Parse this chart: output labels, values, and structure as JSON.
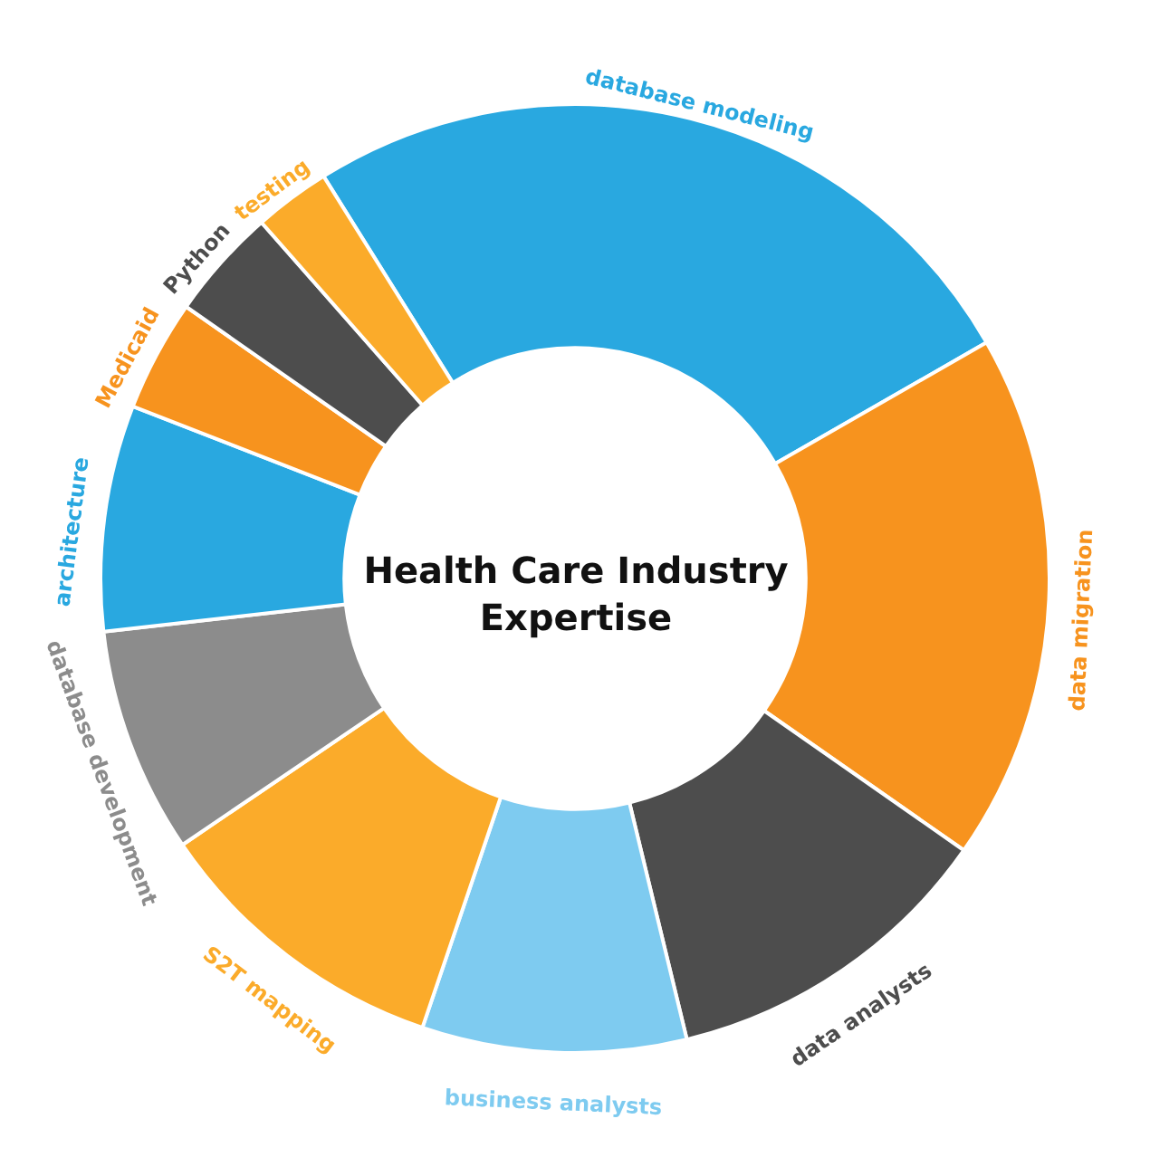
{
  "chart_data": {
    "type": "donut",
    "title": "Health Care Industry Expertise",
    "categories": [
      "database modeling",
      "data migration",
      "data analysts",
      "business analysts",
      "S2T mapping",
      "database development",
      "architecture",
      "Medicaid",
      "Python",
      "testing"
    ],
    "values": [
      25.6,
      18.0,
      11.5,
      9.0,
      10.3,
      7.7,
      7.7,
      3.8,
      3.8,
      2.6
    ],
    "colors": [
      "#29a8e0",
      "#f7931e",
      "#4d4d4d",
      "#7ecbf0",
      "#fbab2a",
      "#8c8c8c",
      "#29a8e0",
      "#f7931e",
      "#4d4d4d",
      "#fbab2a"
    ],
    "legend": false
  }
}
